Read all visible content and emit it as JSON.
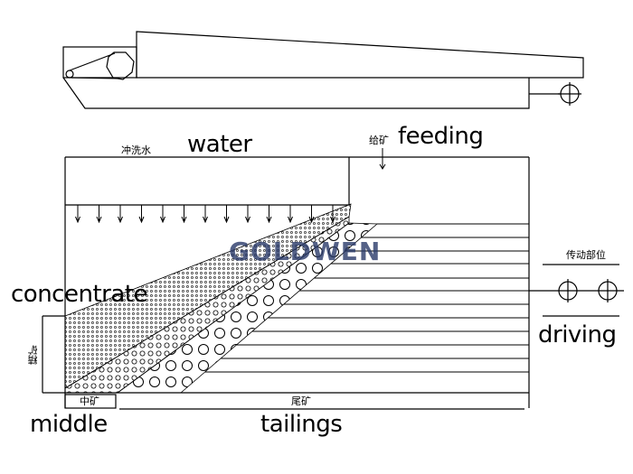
{
  "labels": {
    "water_cn": "冲洗水",
    "water": "water",
    "feeding_cn": "给矿",
    "feeding": "feeding",
    "concentrate": "concentrate",
    "concentrate_cn": "精矿",
    "driving_cn": "传动部位",
    "driving": "driving",
    "middle_cn": "中矿",
    "middle": "middle",
    "tailings_cn": "尾矿",
    "tailings": "tailings"
  },
  "watermark": "GOLDWEN",
  "colors": {
    "line": "#000000",
    "watermark": "#2a3a6a"
  }
}
